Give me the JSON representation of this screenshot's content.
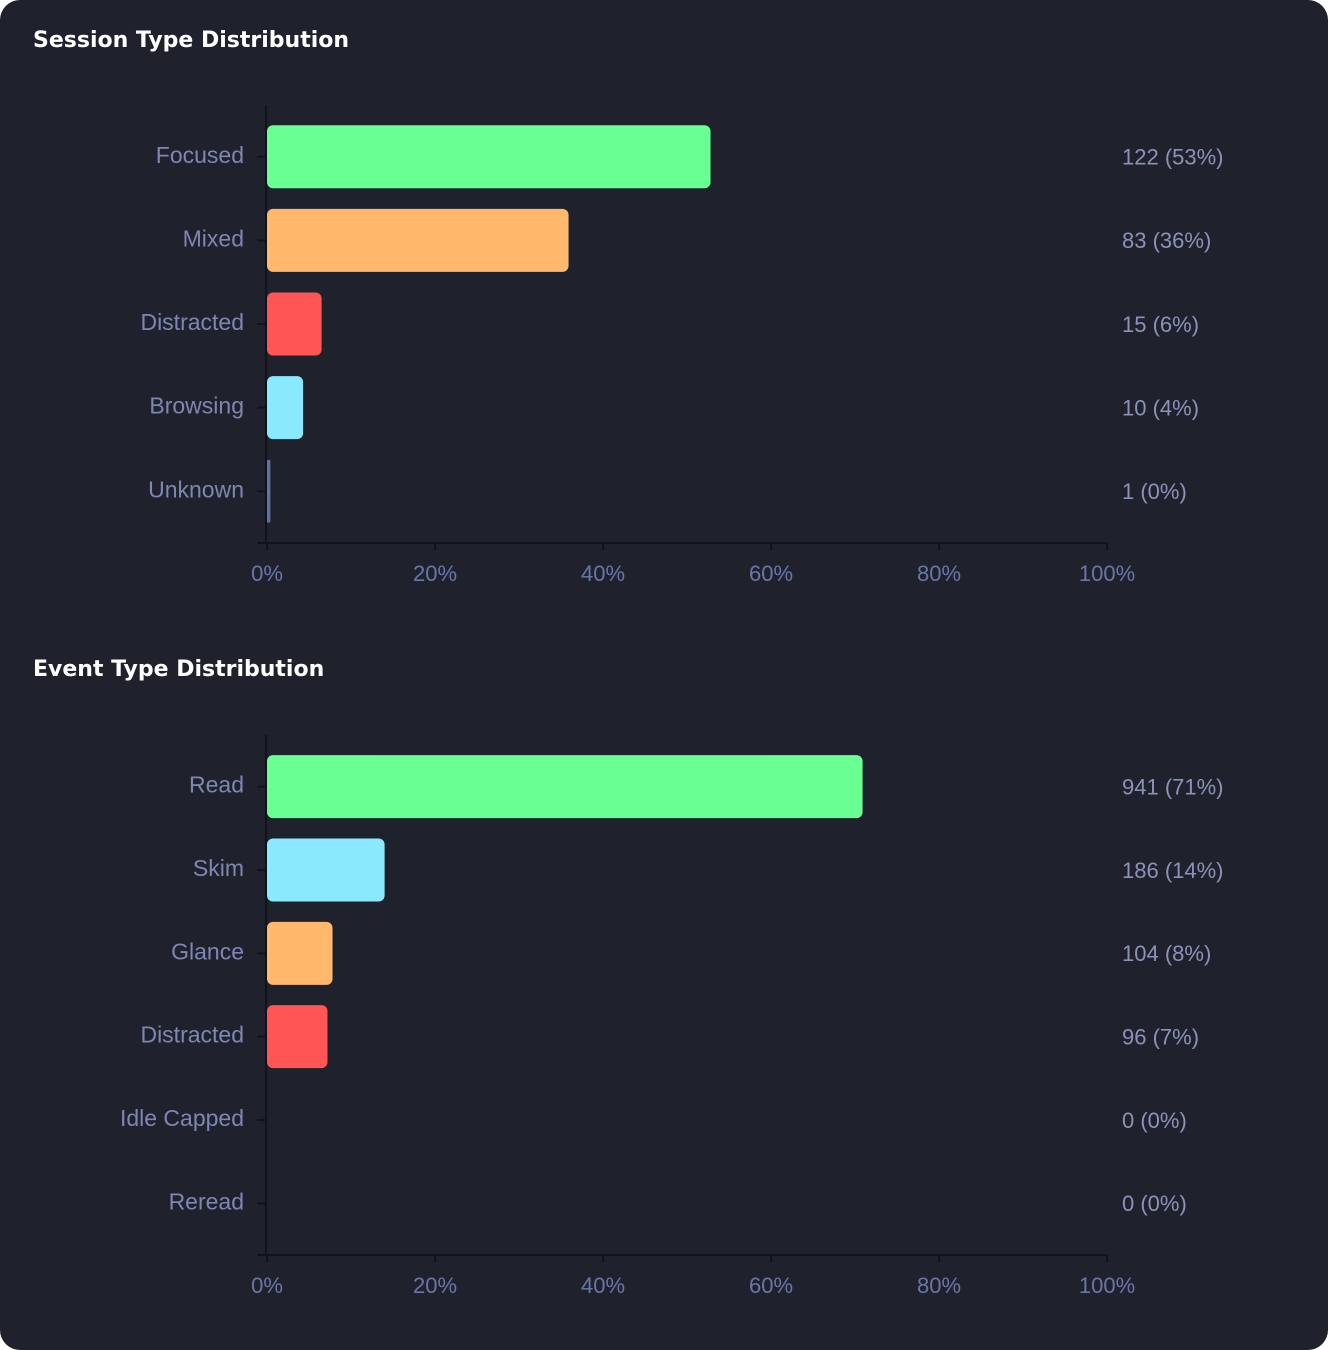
{
  "chart_data": [
    {
      "type": "bar",
      "orientation": "horizontal",
      "title": "Session Type Distribution",
      "categories": [
        "Focused",
        "Mixed",
        "Distracted",
        "Browsing",
        "Unknown"
      ],
      "values": [
        52.8,
        35.9,
        6.5,
        4.3,
        0.4
      ],
      "value_labels": [
        "122 (53%)",
        "83 (36%)",
        "15 (6%)",
        "10 (4%)",
        "1 (0%)"
      ],
      "colors": [
        "#69ff92",
        "#ffb86c",
        "#ff5555",
        "#8be9fd",
        "#6272a4"
      ],
      "xlim": [
        0,
        100
      ],
      "xticks": [
        {
          "value": 0,
          "label": "0%"
        },
        {
          "value": 20,
          "label": "20%"
        },
        {
          "value": 40,
          "label": "40%"
        },
        {
          "value": 60,
          "label": "60%"
        },
        {
          "value": 80,
          "label": "80%"
        },
        {
          "value": 100,
          "label": "100%"
        }
      ]
    },
    {
      "type": "bar",
      "orientation": "horizontal",
      "title": "Event Type Distribution",
      "categories": [
        "Read",
        "Skim",
        "Glance",
        "Distracted",
        "Idle Capped",
        "Reread"
      ],
      "values": [
        70.9,
        14.0,
        7.8,
        7.2,
        0,
        0
      ],
      "value_labels": [
        "941 (71%)",
        "186 (14%)",
        "104 (8%)",
        "96 (7%)",
        "0 (0%)",
        "0 (0%)"
      ],
      "colors": [
        "#69ff92",
        "#8be9fd",
        "#ffb86c",
        "#ff5555",
        "#6272a4",
        "#6272a4"
      ],
      "xlim": [
        0,
        100
      ],
      "xticks": [
        {
          "value": 0,
          "label": "0%"
        },
        {
          "value": 20,
          "label": "20%"
        },
        {
          "value": 40,
          "label": "40%"
        },
        {
          "value": 60,
          "label": "60%"
        },
        {
          "value": 80,
          "label": "80%"
        },
        {
          "value": 100,
          "label": "100%"
        }
      ]
    }
  ]
}
